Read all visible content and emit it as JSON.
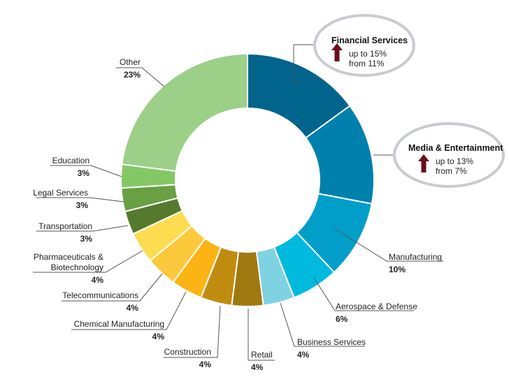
{
  "chart_data": {
    "type": "pie",
    "donut": true,
    "start_angle_deg": 0,
    "direction": "clockwise",
    "slices": [
      {
        "label": "Financial Services",
        "pct_label": "",
        "value": 15,
        "color": "#00648c"
      },
      {
        "label": "Media & Entertainment",
        "pct_label": "",
        "value": 13,
        "color": "#0080ad"
      },
      {
        "label": "Manufacturing",
        "pct_label": "10%",
        "value": 10,
        "color": "#009ec8"
      },
      {
        "label": "Aerospace & Defense",
        "pct_label": "6%",
        "value": 6,
        "color": "#00bade"
      },
      {
        "label": "Business Services",
        "pct_label": "4%",
        "value": 4,
        "color": "#7fd2e2"
      },
      {
        "label": "Retail",
        "pct_label": "4%",
        "value": 4,
        "color": "#a07810"
      },
      {
        "label": "Construction",
        "pct_label": "4%",
        "value": 4,
        "color": "#c08c10"
      },
      {
        "label": "Chemical Manufacturing",
        "pct_label": "4%",
        "value": 4,
        "color": "#fbb414"
      },
      {
        "label": "Telecommunications",
        "pct_label": "4%",
        "value": 4,
        "color": "#fcc83c"
      },
      {
        "label": "Pharmaceuticals & Biotechnology",
        "label_lines": [
          "Pharmaceuticals &",
          "Biotechnology"
        ],
        "pct_label": "4%",
        "value": 4,
        "color": "#fedc50"
      },
      {
        "label": "Transportation",
        "pct_label": "3%",
        "value": 3,
        "color": "#557a2e"
      },
      {
        "label": "Legal Services",
        "pct_label": "3%",
        "value": 3,
        "color": "#68a043"
      },
      {
        "label": "Education",
        "pct_label": "3%",
        "value": 3,
        "color": "#84c866"
      },
      {
        "label": "Other",
        "pct_label": "23%",
        "value": 23,
        "color": "#9ccf88"
      }
    ],
    "callouts": [
      {
        "title": "Financial Services",
        "lines": [
          "up to 15%",
          "from 11%"
        ],
        "arrow": "up"
      },
      {
        "title": "Media & Entertainment",
        "lines": [
          "up to 13%",
          "from 7%"
        ],
        "arrow": "up"
      }
    ],
    "colors": {
      "arrow": "#6b0f1a",
      "leader": "#555555",
      "callout_ring": "#c8cbd0"
    }
  }
}
